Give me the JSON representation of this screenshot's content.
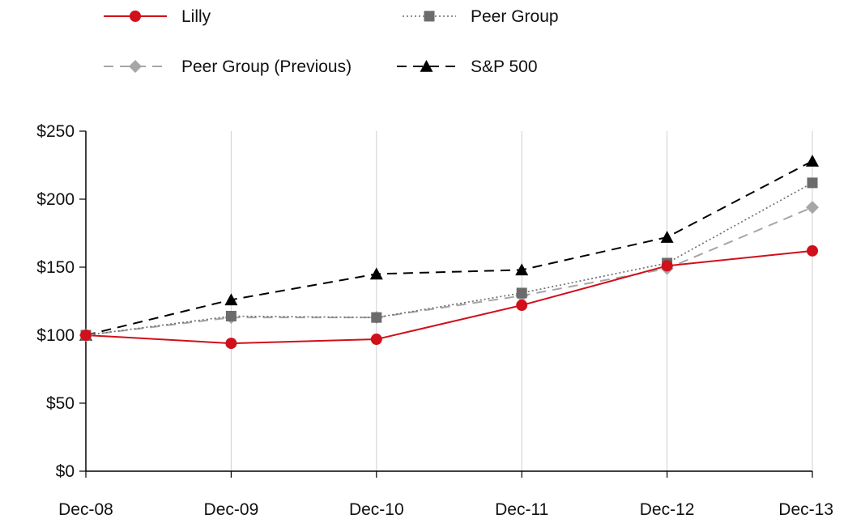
{
  "chart_data": {
    "type": "line",
    "categories": [
      "Dec-08",
      "Dec-09",
      "Dec-10",
      "Dec-11",
      "Dec-12",
      "Dec-13"
    ],
    "ylim": [
      0,
      250
    ],
    "yticks": [
      0,
      50,
      100,
      150,
      200,
      250
    ],
    "ytick_labels": [
      "$0",
      "$50",
      "$100",
      "$150",
      "$200",
      "$250"
    ],
    "grid": "vertical",
    "legend_placement": "top",
    "series": [
      {
        "name": "Lilly",
        "values": [
          100,
          94,
          97,
          122,
          151,
          162
        ],
        "color": "#d0101a",
        "marker": "circle",
        "dash": "solid"
      },
      {
        "name": "Peer Group",
        "values": [
          100,
          114,
          113,
          131,
          153,
          212
        ],
        "color": "#6b6b6b",
        "marker": "square",
        "dash": "dotted"
      },
      {
        "name": "Peer Group (Previous)",
        "values": [
          100,
          113,
          113,
          129,
          149,
          194
        ],
        "color": "#a6a6a6",
        "marker": "diamond",
        "dash": "dashed"
      },
      {
        "name": "S&P 500",
        "values": [
          100,
          126,
          145,
          148,
          172,
          228
        ],
        "color": "#000000",
        "marker": "triangle",
        "dash": "dashed"
      }
    ]
  }
}
